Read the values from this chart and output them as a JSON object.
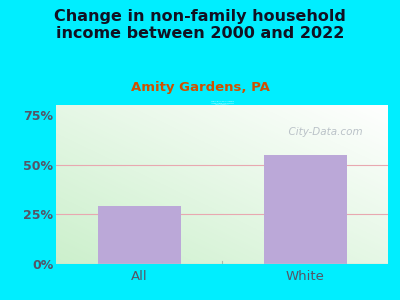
{
  "title": "Change in non-family household\nincome between 2000 and 2022",
  "subtitle": "Amity Gardens, PA",
  "categories": [
    "All",
    "White"
  ],
  "values": [
    29,
    55
  ],
  "bar_color": "#bba8d8",
  "title_fontsize": 11.5,
  "subtitle_fontsize": 9.5,
  "subtitle_color": "#d05000",
  "title_color": "#111122",
  "tick_color": "#555566",
  "ylim": [
    0,
    80
  ],
  "yticks": [
    0,
    25,
    50,
    75
  ],
  "ytick_labels": [
    "0%",
    "25%",
    "50%",
    "75%"
  ],
  "bg_outer": "#00eeff",
  "watermark": "  City-Data.com",
  "grid_color": "#e8a8b0",
  "grid_linewidth": 0.8,
  "gradient_colors": [
    "#c8e8c0",
    "#f4fcf0"
  ],
  "separator_color": "#aabbaa",
  "xaxis_line_color": "#c8d8c8"
}
